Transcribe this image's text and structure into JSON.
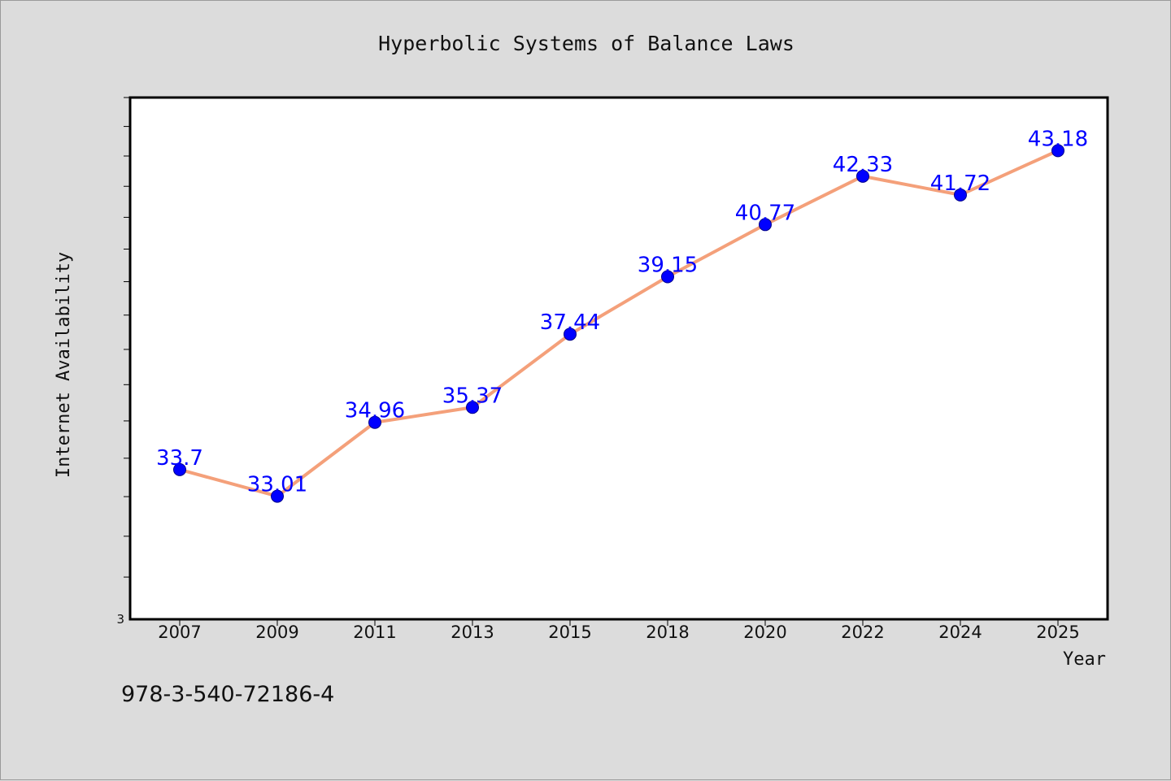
{
  "chart_data": {
    "type": "line",
    "title": "Hyperbolic Systems of Balance Laws",
    "xlabel": "Year",
    "ylabel": "Internet Availability",
    "categories": [
      "2007",
      "2009",
      "2011",
      "2013",
      "2015",
      "2018",
      "2020",
      "2022",
      "2024",
      "2025"
    ],
    "series": [
      {
        "values": [
          33.7,
          33.01,
          34.96,
          35.37,
          37.44,
          39.15,
          40.77,
          42.33,
          41.72,
          43.18
        ],
        "data_labels": [
          "33.7",
          "33.01",
          "34.96",
          "35.37",
          "37.44",
          "39.15",
          "40.77",
          "42.33",
          "41.72",
          "43.18"
        ]
      }
    ],
    "y_tick_labels": [
      "3"
    ],
    "y_scale": "log",
    "ylim": [
      30,
      45
    ],
    "grid": false,
    "legend": "none",
    "colors": {
      "line": "#f4a07a",
      "marker": "#0000ff",
      "label": "#0000ff",
      "plot_bg": "#ffffff",
      "figure_bg": "#dcdcdc"
    }
  },
  "footer_text": "978-3-540-72186-4"
}
